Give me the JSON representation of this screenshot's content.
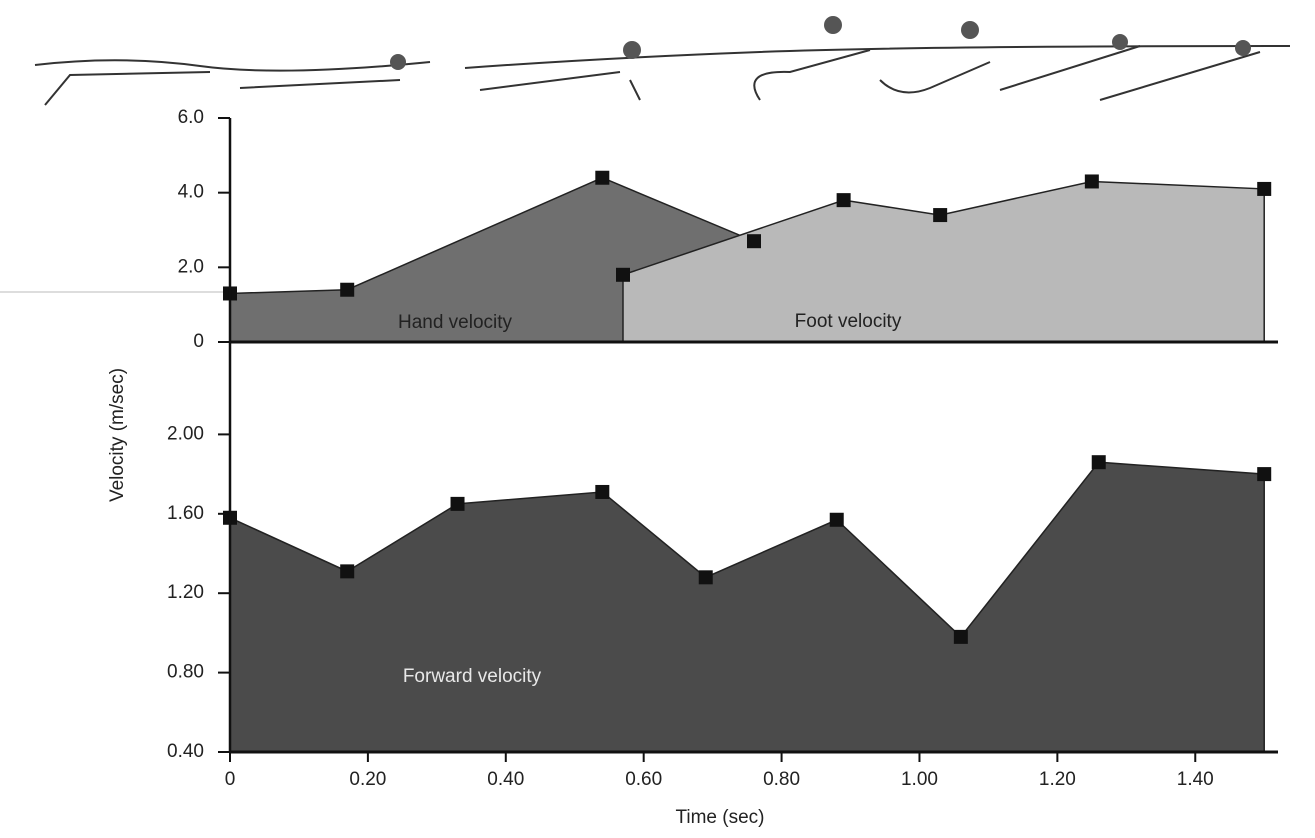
{
  "chart_data": [
    {
      "type": "area",
      "xlim": [
        0,
        1.52
      ],
      "ylim": [
        0,
        6
      ],
      "yticks": [
        {
          "value": 6,
          "label": "6.0"
        },
        {
          "value": 4,
          "label": "4.0"
        },
        {
          "value": 2,
          "label": "2.0"
        },
        0
      ],
      "series": [
        {
          "name": "Hand velocity",
          "color": "#6f6f6f",
          "x": [
            0,
            0.17,
            0.54,
            0.76
          ],
          "values": [
            1.3,
            1.4,
            4.4,
            2.7
          ]
        },
        {
          "name": "Foot velocity",
          "color": "#b9b9b9",
          "x": [
            0.57,
            0.89,
            1.03,
            1.25,
            1.5
          ],
          "values": [
            1.8,
            3.8,
            3.4,
            4.3,
            4.1
          ]
        }
      ]
    },
    {
      "type": "area",
      "x_label": "Time (sec)",
      "y_label": "Velocity (m/sec)",
      "xlim": [
        0,
        1.52
      ],
      "xticks": [
        0,
        {
          "value": 0.2,
          "label": "0.20"
        },
        {
          "value": 0.4,
          "label": "0.40"
        },
        {
          "value": 0.6,
          "label": "0.60"
        },
        {
          "value": 0.8,
          "label": "0.80"
        },
        {
          "value": 1.0,
          "label": "1.00"
        },
        {
          "value": 1.2,
          "label": "1.20"
        },
        {
          "value": 1.4,
          "label": "1.40"
        }
      ],
      "ylim": [
        0.4,
        2.4
      ],
      "yticks": [
        {
          "value": 2.0,
          "label": "2.00"
        },
        {
          "value": 1.6,
          "label": "1.60"
        },
        {
          "value": 1.2,
          "label": "1.20"
        },
        {
          "value": 0.8,
          "label": "0.80"
        },
        {
          "value": 0.4,
          "label": "0.40"
        }
      ],
      "series": [
        {
          "name": "Forward velocity",
          "color": "#4b4b4b",
          "x": [
            0,
            0.17,
            0.33,
            0.54,
            0.69,
            0.88,
            1.06,
            1.26,
            1.5
          ],
          "values": [
            1.58,
            1.31,
            1.65,
            1.71,
            1.28,
            1.57,
            0.98,
            1.86,
            1.8
          ]
        }
      ]
    }
  ]
}
